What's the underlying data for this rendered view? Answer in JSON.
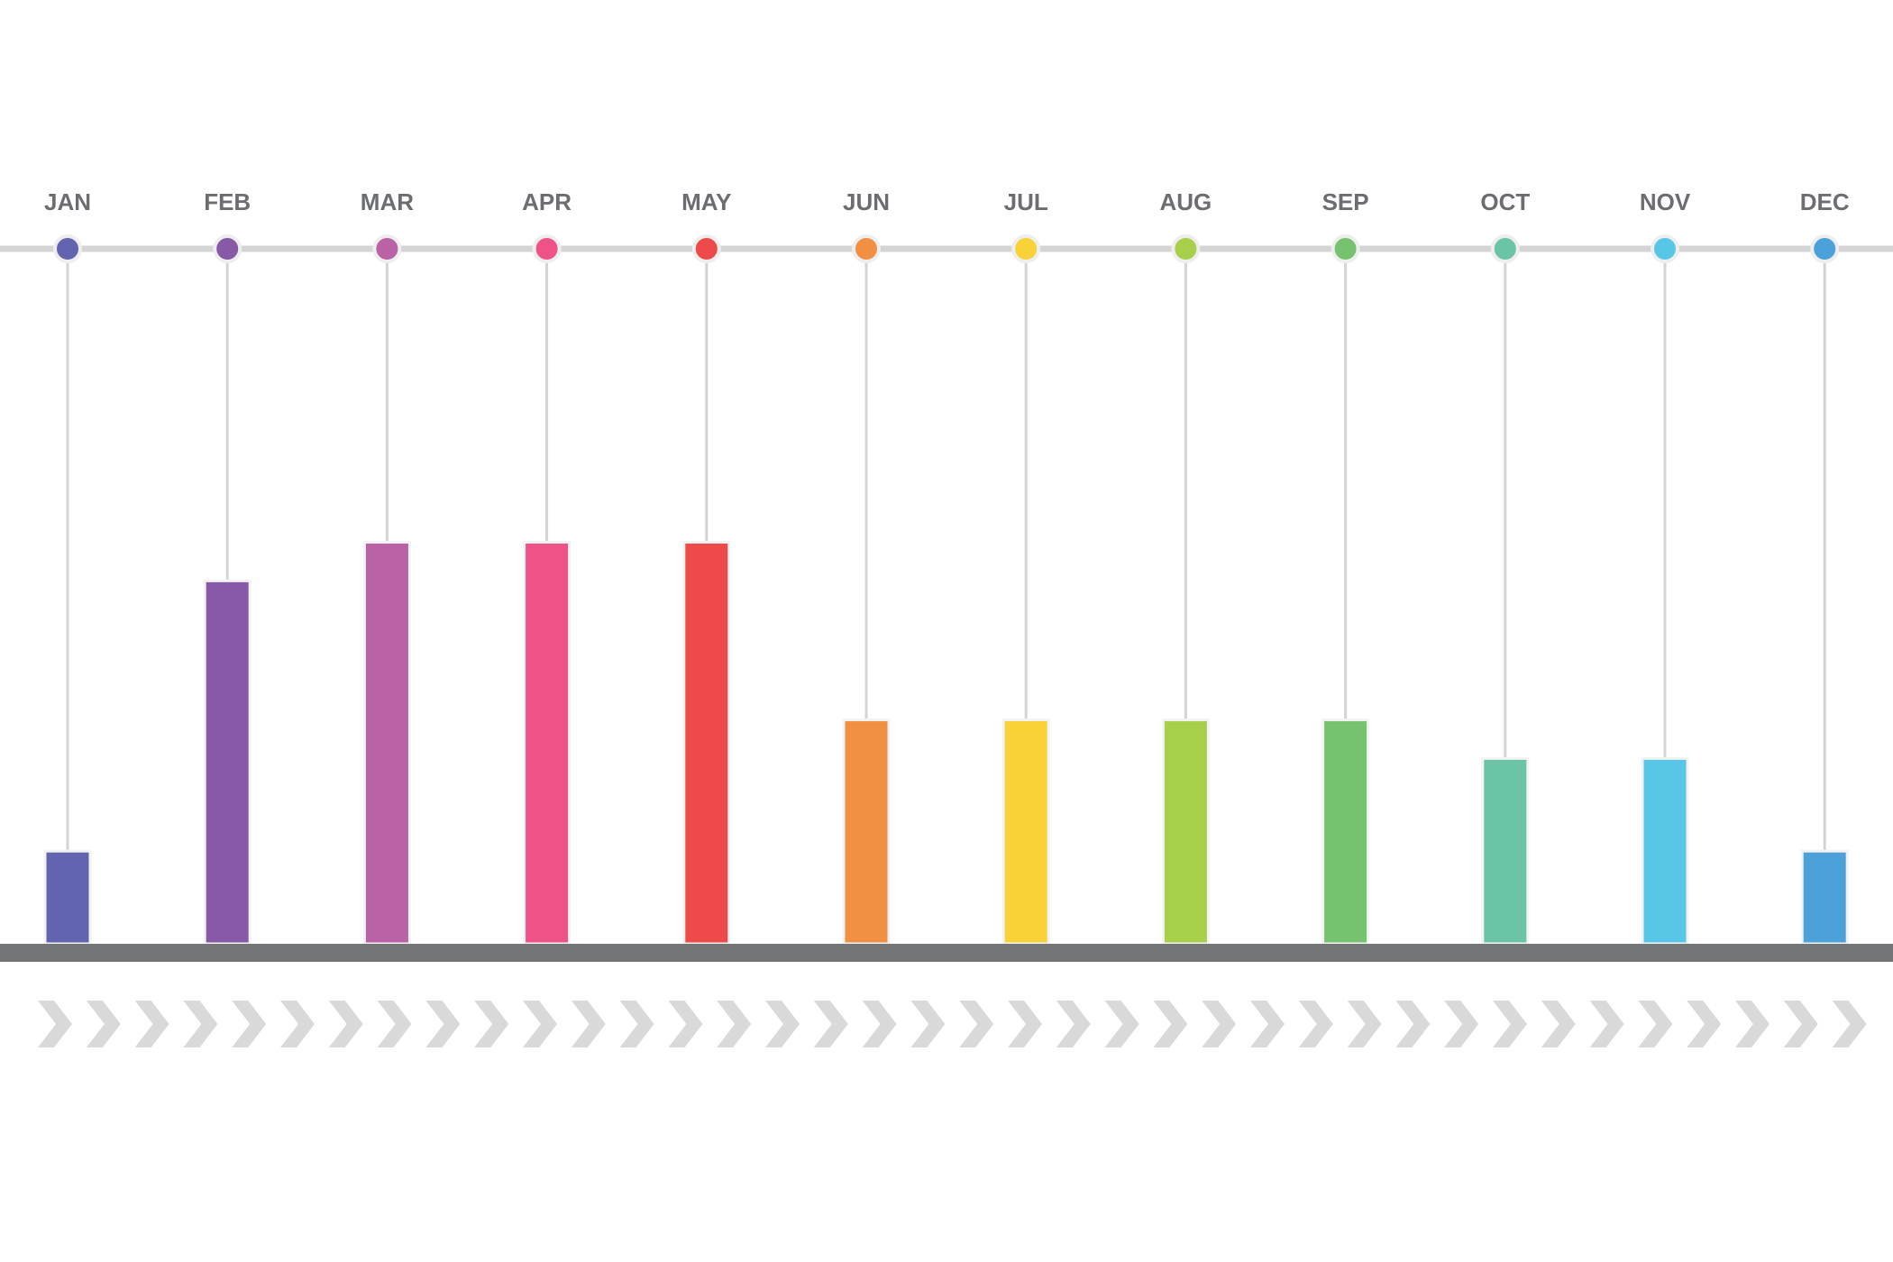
{
  "chart_data": {
    "type": "bar",
    "title": "",
    "xlabel": "",
    "ylabel": "",
    "ylim": [
      0,
      9
    ],
    "categories": [
      "JAN",
      "FEB",
      "MAR",
      "APR",
      "MAY",
      "JUN",
      "JUL",
      "AUG",
      "SEP",
      "OCT",
      "NOV",
      "DEC"
    ],
    "values": [
      1.2,
      4.7,
      5.2,
      5.2,
      5.2,
      2.9,
      2.9,
      2.9,
      2.9,
      2.4,
      2.4,
      1.2
    ],
    "colors": [
      "#6264b0",
      "#8759a6",
      "#b962a5",
      "#ef5287",
      "#ee4a4a",
      "#f18f43",
      "#f8d236",
      "#a7cf4a",
      "#77c26f",
      "#6bc4a6",
      "#58c6e6",
      "#4ca1d9"
    ],
    "grid": false,
    "legend": "none",
    "track_color": "#d4d4d4",
    "baseline_color": "#737577",
    "chevron_color": "#d9d9d9"
  }
}
